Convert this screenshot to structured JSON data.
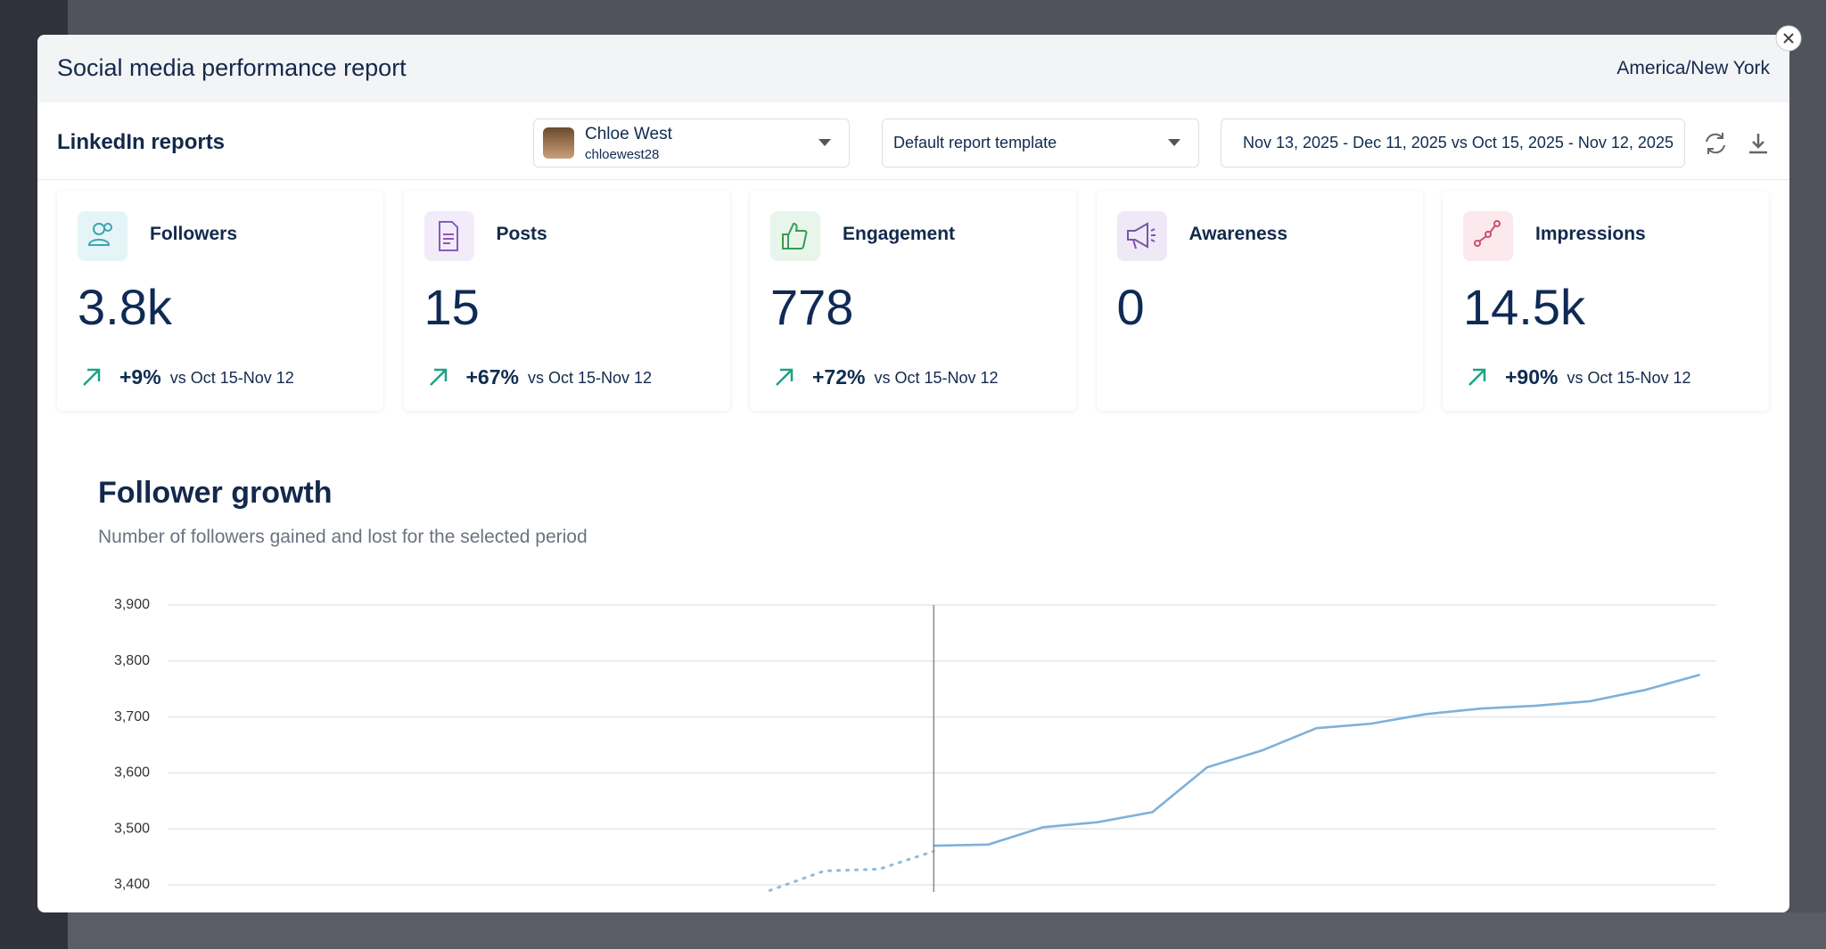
{
  "header": {
    "title": "Social media performance report",
    "timezone": "America/New York"
  },
  "toolbar": {
    "title": "LinkedIn reports",
    "profile": {
      "name": "Chloe West",
      "handle": "chloewest28"
    },
    "template": "Default report template",
    "date_range": "Nov 13, 2025 - Dec 11, 2025 vs Oct 15, 2025 - Nov 12, 2025"
  },
  "cards": [
    {
      "label": "Followers",
      "value": "3.8k",
      "change": "+9%",
      "comparison": "vs Oct 15-Nov 12"
    },
    {
      "label": "Posts",
      "value": "15",
      "change": "+67%",
      "comparison": "vs Oct 15-Nov 12"
    },
    {
      "label": "Engagement",
      "value": "778",
      "change": "+72%",
      "comparison": "vs Oct 15-Nov 12"
    },
    {
      "label": "Awareness",
      "value": "0"
    },
    {
      "label": "Impressions",
      "value": "14.5k",
      "change": "+90%",
      "comparison": "vs Oct 15-Nov 12"
    }
  ],
  "chart_data": {
    "type": "line",
    "title": "Follower growth",
    "subtitle": "Number of followers gained and lost for the selected period",
    "xlim": [
      0,
      28.3
    ],
    "ylim": [
      3400,
      3900
    ],
    "yticks": [
      {
        "value": 3400,
        "label": "3,400"
      },
      {
        "value": 3500,
        "label": "3,500"
      },
      {
        "value": 3600,
        "label": "3,600"
      },
      {
        "value": 3700,
        "label": "3,700"
      },
      {
        "value": 3800,
        "label": "3,800"
      },
      {
        "value": 3900,
        "label": "3,900"
      }
    ],
    "grid": true,
    "series": [
      {
        "color": "#8bbbe0",
        "line_style": "dotted",
        "x": [
          11,
          12,
          13,
          14
        ],
        "values": [
          3390,
          3425,
          3428,
          3460
        ]
      },
      {
        "color": "#7fb0d9",
        "line_style": "solid",
        "x": [
          14,
          15,
          16,
          17,
          18,
          19,
          20,
          21,
          22,
          23,
          24,
          25,
          26,
          27,
          28
        ],
        "values": [
          3470,
          3472,
          3503,
          3512,
          3530,
          3610,
          3640,
          3680,
          3688,
          3705,
          3715,
          3720,
          3728,
          3748,
          3775
        ]
      }
    ]
  }
}
